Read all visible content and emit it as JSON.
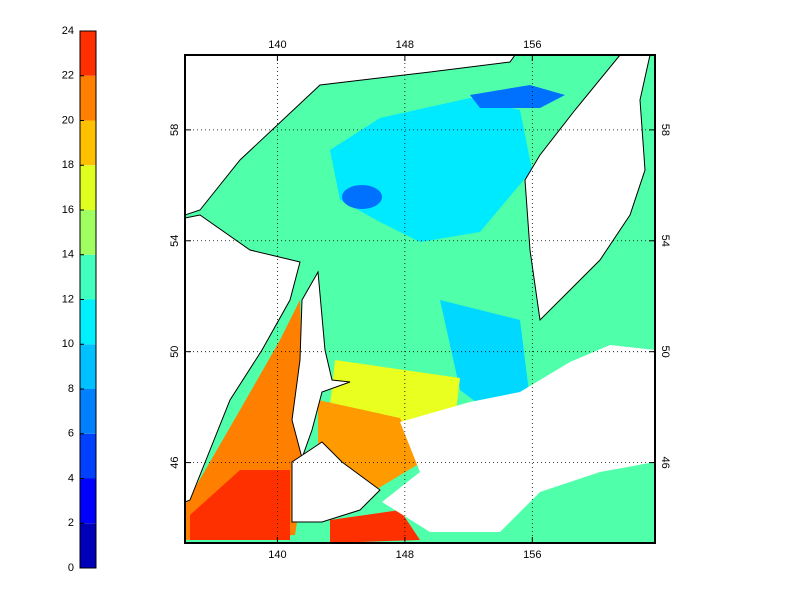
{
  "colorbar": {
    "lim": [
      0,
      24
    ],
    "ticks": [
      0,
      2,
      4,
      6,
      8,
      10,
      12,
      14,
      16,
      18,
      20,
      22,
      24
    ],
    "colors": [
      "#0000b8",
      "#0000ff",
      "#0040ff",
      "#0080ff",
      "#00c0ff",
      "#00f0ff",
      "#40ffbf",
      "#9fff60",
      "#e0ff20",
      "#ffc000",
      "#ff8000",
      "#ff3000"
    ]
  },
  "map": {
    "lon_lim": [
      134.2,
      163.7
    ],
    "lat_lim": [
      43.1,
      60.7
    ],
    "lon_ticks": [
      140,
      148,
      156
    ],
    "lat_ticks": [
      46,
      50,
      54,
      58
    ],
    "grid": true
  }
}
